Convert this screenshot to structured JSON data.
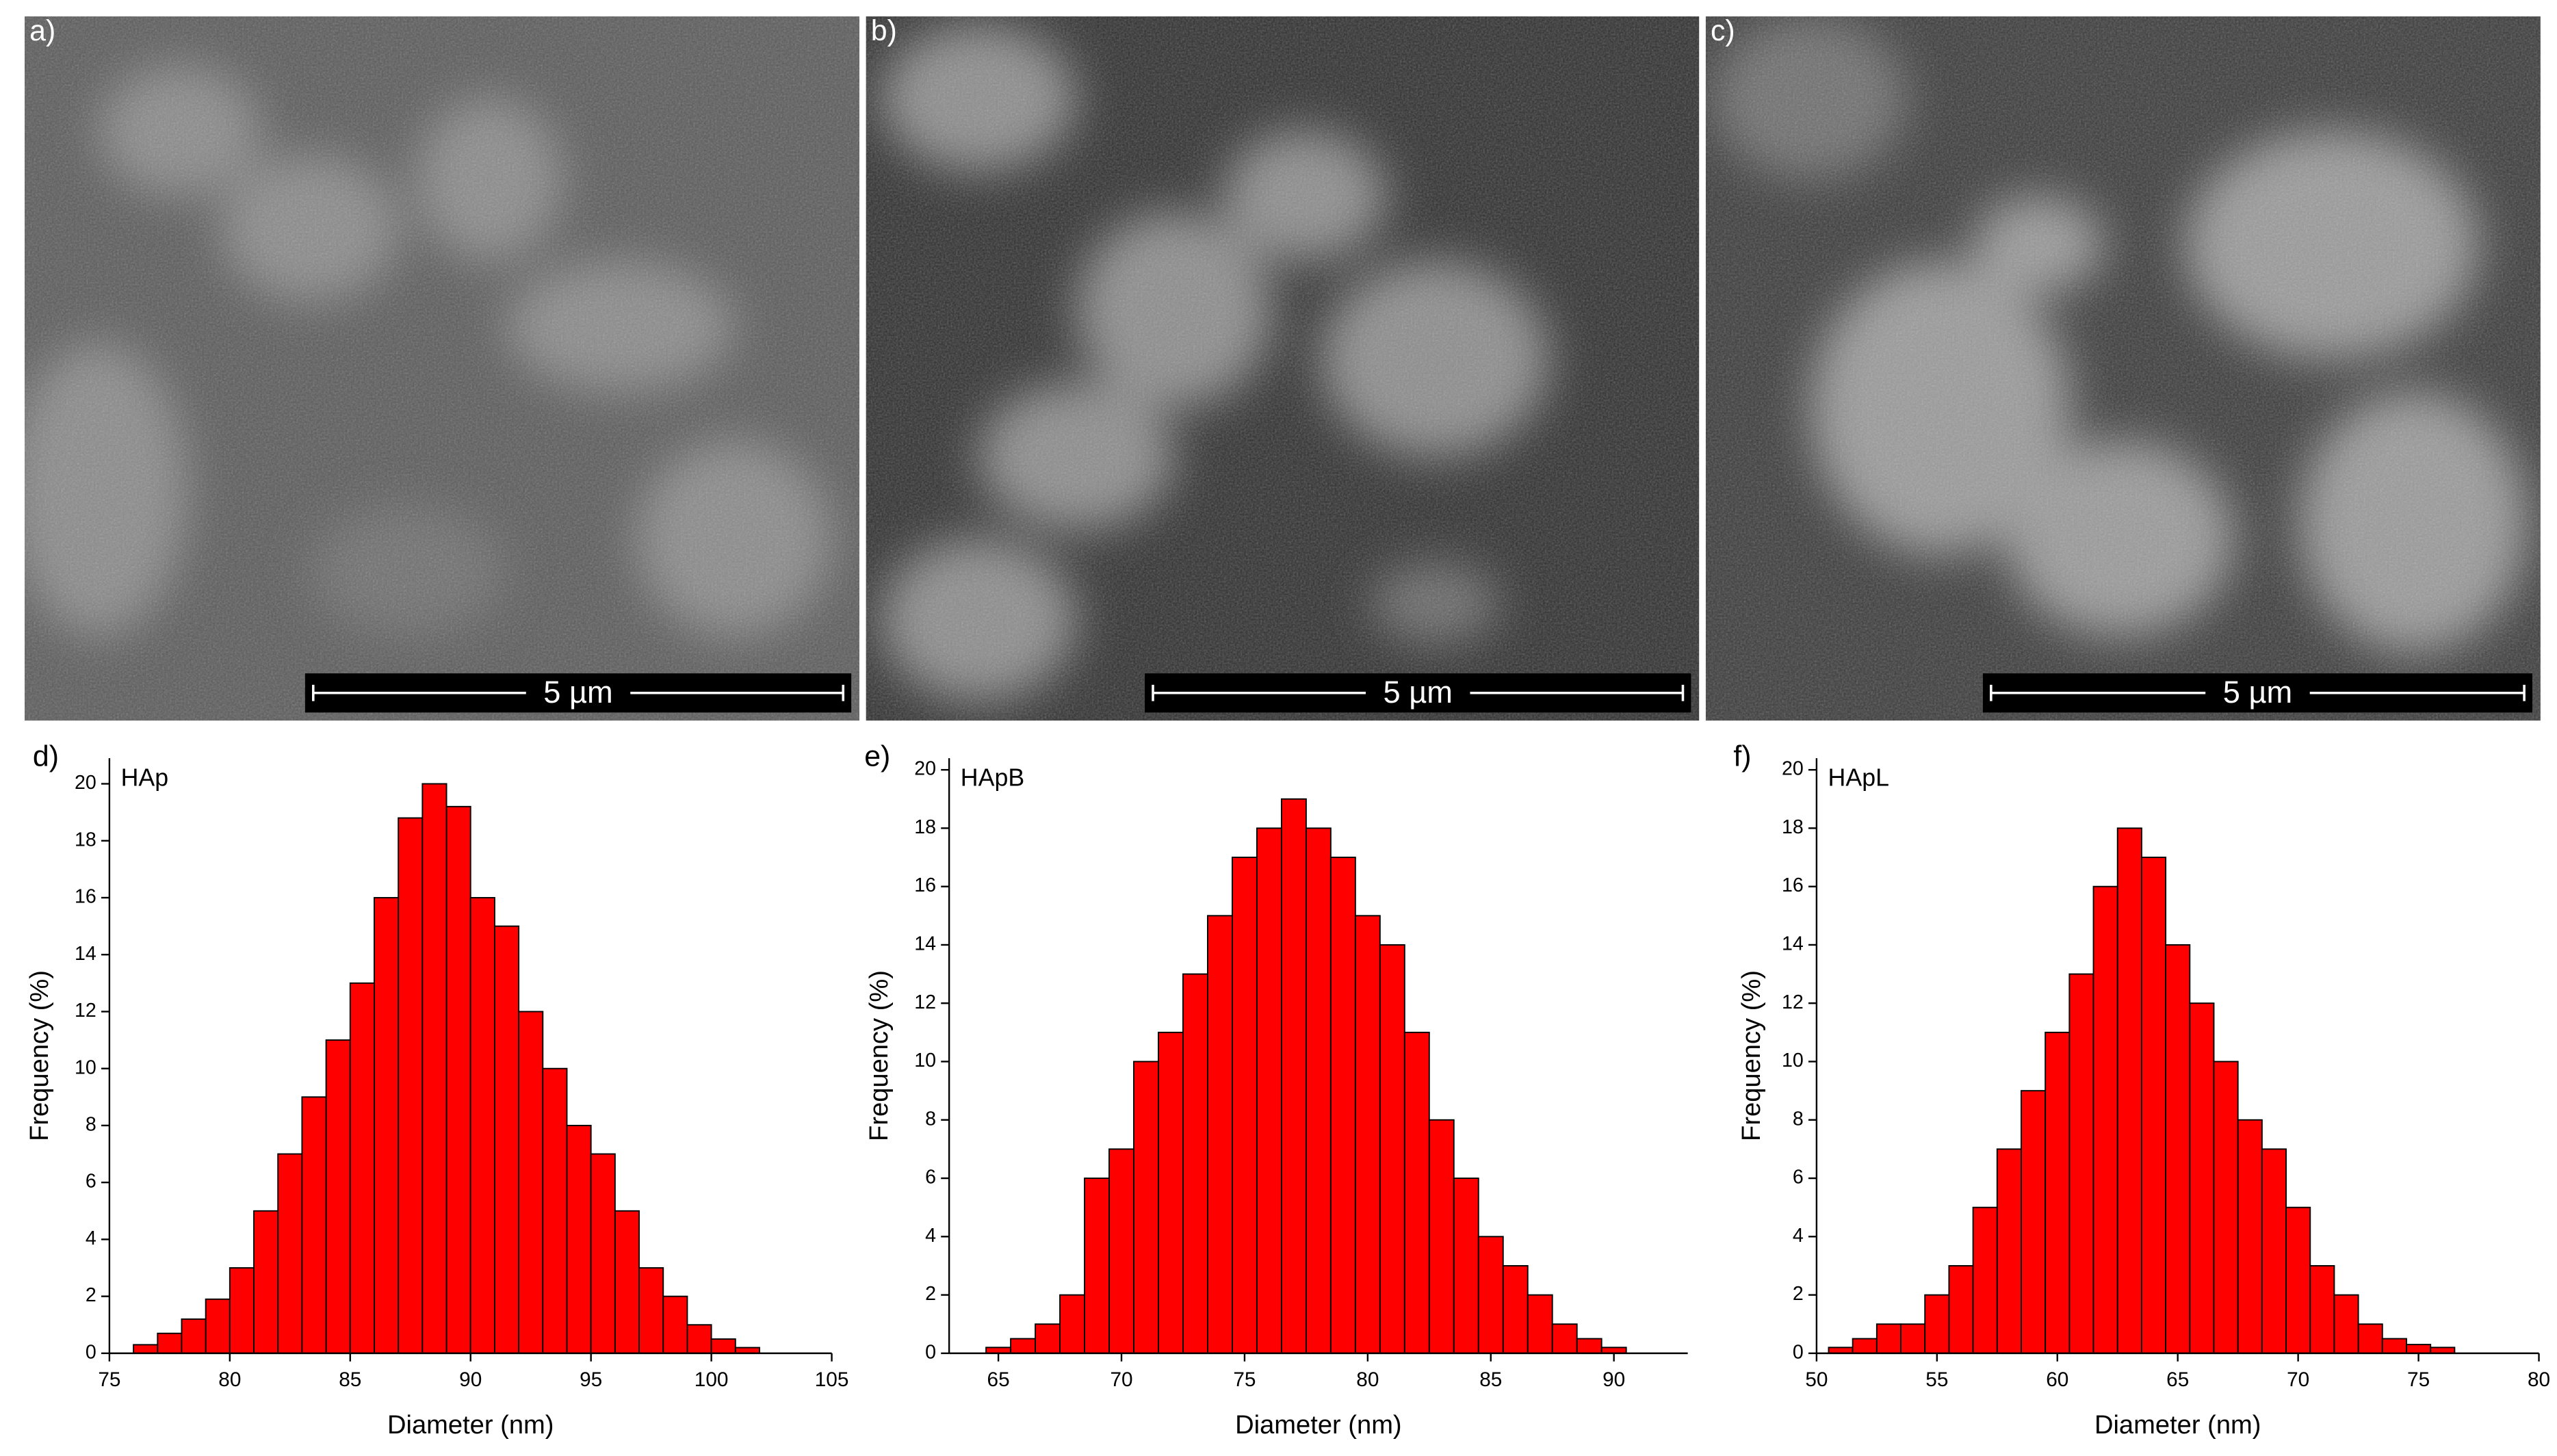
{
  "images": [
    {
      "label": "a)",
      "scale_bar": "5 µm"
    },
    {
      "label": "b)",
      "scale_bar": "5 µm"
    },
    {
      "label": "c)",
      "scale_bar": "5 µm"
    }
  ],
  "chart_data": [
    {
      "type": "histogram",
      "panel": "d)",
      "title": "HAp",
      "x_label": "Diameter (nm)",
      "y_label": "Frequency (%)",
      "color": "#ff0000",
      "bins": [
        76,
        77,
        78,
        79,
        80,
        81,
        82,
        83,
        84,
        85,
        86,
        87,
        88,
        89,
        90,
        91,
        92,
        93,
        94,
        95,
        96,
        97,
        98,
        99,
        100,
        101,
        102
      ],
      "values": [
        0.3,
        0.7,
        1.2,
        1.9,
        3,
        5,
        7,
        9,
        11,
        13,
        16,
        18.8,
        20,
        19.2,
        16,
        15,
        12,
        10,
        8,
        7,
        5,
        3,
        2,
        1,
        0.5,
        0.2
      ],
      "xlim": [
        75,
        105
      ],
      "xticks": [
        75,
        80,
        85,
        90,
        95,
        100,
        105
      ],
      "ylim": [
        0,
        20.9
      ],
      "yticks": [
        0,
        2,
        4,
        6,
        8,
        10,
        12,
        14,
        16,
        18,
        20
      ]
    },
    {
      "type": "histogram",
      "panel": "e)",
      "title": "HApB",
      "x_label": "Diameter (nm)",
      "y_label": "Frequency (%)",
      "color": "#ff0000",
      "bins": [
        64.5,
        65.5,
        66.5,
        67.5,
        68.5,
        69.5,
        70.5,
        71.5,
        72.5,
        73.5,
        74.5,
        75.5,
        76.5,
        77.5,
        78.5,
        79.5,
        80.5,
        81.5,
        82.5,
        83.5,
        84.5,
        85.5,
        86.5,
        87.5,
        88.5,
        89.5,
        90.5
      ],
      "values": [
        0.2,
        0.5,
        1,
        2,
        6,
        7,
        10,
        11,
        13,
        15,
        17,
        18,
        19,
        18,
        17,
        15,
        14,
        11,
        8,
        6,
        4,
        3,
        2,
        1,
        0.5,
        0.2
      ],
      "xlim": [
        63,
        93
      ],
      "xticks": [
        65,
        70,
        75,
        80,
        85,
        90
      ],
      "ylim": [
        0,
        20.4
      ],
      "yticks": [
        0,
        2,
        4,
        6,
        8,
        10,
        12,
        14,
        16,
        18,
        20
      ]
    },
    {
      "type": "histogram",
      "panel": "f)",
      "title": "HApL",
      "x_label": "Diameter (nm)",
      "y_label": "Frequency (%)",
      "color": "#ff0000",
      "bins": [
        50.5,
        51.5,
        52.5,
        53.5,
        54.5,
        55.5,
        56.5,
        57.5,
        58.5,
        59.5,
        60.5,
        61.5,
        62.5,
        63.5,
        64.5,
        65.5,
        66.5,
        67.5,
        68.5,
        69.5,
        70.5,
        71.5,
        72.5,
        73.5,
        74.5,
        75.5,
        76.5
      ],
      "values": [
        0.2,
        0.5,
        1,
        1,
        2,
        3,
        5,
        7,
        9,
        11,
        13,
        16,
        18,
        17,
        14,
        12,
        10,
        8,
        7,
        5,
        3,
        2,
        1,
        0.5,
        0.3,
        0.2
      ],
      "xlim": [
        50,
        80
      ],
      "xticks": [
        50,
        55,
        60,
        65,
        70,
        75,
        80
      ],
      "ylim": [
        0,
        20.4
      ],
      "yticks": [
        0,
        2,
        4,
        6,
        8,
        10,
        12,
        14,
        16,
        18,
        20
      ]
    }
  ]
}
